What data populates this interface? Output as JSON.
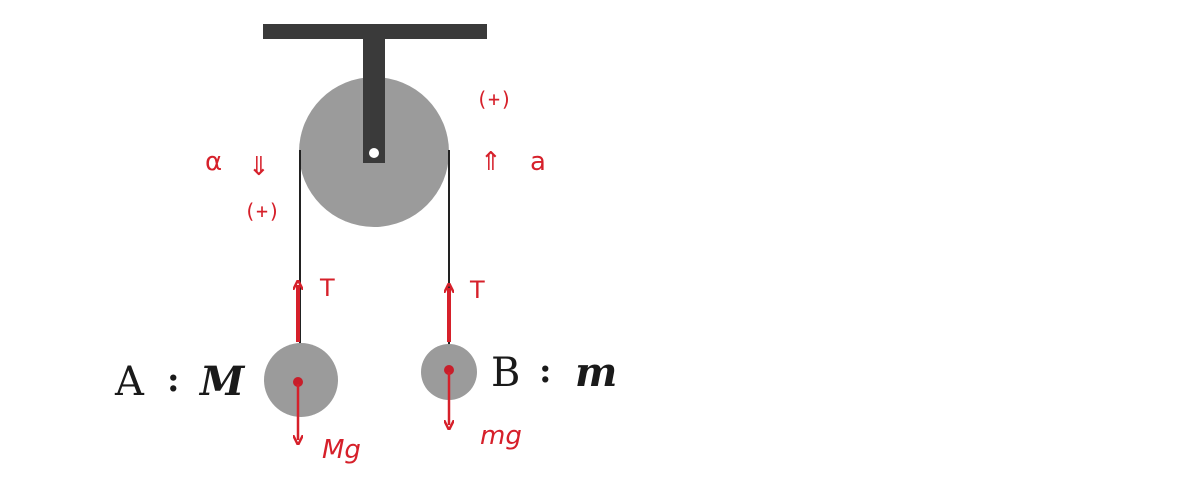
{
  "colors": {
    "support": "#3a3a3a",
    "pulley": "#9b9b9b",
    "rope": "#222222",
    "annotation": "#d6202a",
    "mass_point": "#c81e2a",
    "text": "#1a1a1a"
  },
  "left_side": {
    "accel_symbol": "α",
    "accel_arrow": "⇓",
    "sign": "(+)",
    "tension": "T",
    "weight": "Mg",
    "body_letter": "A",
    "separator": ":",
    "body_mass": "M"
  },
  "right_side": {
    "accel_symbol": "a",
    "accel_arrow": "⇑",
    "sign": "(+)",
    "tension": "T",
    "weight": "mg",
    "body_letter": "B",
    "separator": ":",
    "body_mass": "m"
  }
}
